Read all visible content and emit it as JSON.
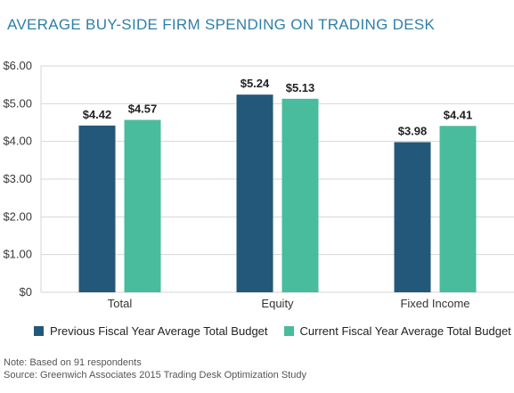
{
  "title": "AVERAGE BUY-SIDE FIRM SPENDING ON TRADING DESK",
  "colors": {
    "title": "#2f7fa8",
    "previous": "#24587a",
    "current": "#48bc9c",
    "grid": "#d6d6d6"
  },
  "notes": {
    "note": "Note: Based on 91 respondents",
    "source": "Source: Greenwich Associates 2015 Trading Desk Optimization Study"
  },
  "chart_data": {
    "type": "bar",
    "title": "AVERAGE BUY-SIDE FIRM SPENDING ON TRADING DESK",
    "categories": [
      "Total",
      "Equity",
      "Fixed Income"
    ],
    "series": [
      {
        "name": "Previous Fiscal Year Average Total Budget",
        "values": [
          4.42,
          5.24,
          3.98
        ],
        "labels": [
          "$4.42",
          "$5.24",
          "$3.98"
        ]
      },
      {
        "name": "Current Fiscal Year Average Total Budget",
        "values": [
          4.57,
          5.13,
          4.41
        ],
        "labels": [
          "$4.57",
          "$5.13",
          "$4.41"
        ]
      }
    ],
    "yticks": [
      0,
      1,
      2,
      3,
      4,
      5,
      6
    ],
    "ytick_labels": [
      "$0",
      "$1.00",
      "$2.00",
      "$3.00",
      "$4.00",
      "$5.00",
      "$6.00"
    ],
    "ylim": [
      0,
      6
    ],
    "grid": true,
    "legend": "bottom"
  }
}
